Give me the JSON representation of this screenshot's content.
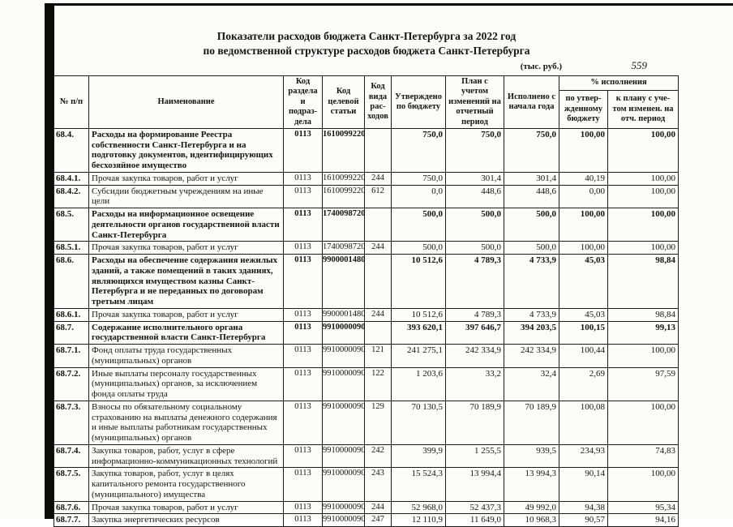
{
  "page": {
    "title_line1": "Показатели расходов бюджета Санкт-Петербурга за 2022 год",
    "title_line2": "по ведомственной структуре расходов бюджета Санкт-Петербурга",
    "units_note": "(тыс. руб.)",
    "page_number": "559"
  },
  "table": {
    "headers": {
      "num": "№ п/п",
      "name": "Наименование",
      "code_section": "Код раздела и подраз-дела",
      "code_target": "Код целевой статьи",
      "code_type": "Код вида рас-ходов",
      "approved": "Утверждено по бюджету",
      "plan": "План с учетом изменений на отчетный период",
      "executed": "Исполнено с начала года",
      "percent_group": "% исполнения",
      "percent_approved": "по утвер-жденному бюджету",
      "percent_plan": "к плану с уче-том изменен. на отч. период"
    },
    "rows": [
      {
        "num": "68.4.",
        "bold": true,
        "name": "Расходы на формирование Реестра собственности Санкт-Петербурга и на подготовку документов, идентифицирующих бесхозяйное имущество",
        "code_section": "0113",
        "code_target": "1610099220",
        "code_type": "",
        "approved": "750,0",
        "plan": "750,0",
        "executed": "750,0",
        "pct_budget": "100,00",
        "pct_plan": "100,00"
      },
      {
        "num": "68.4.1.",
        "bold": false,
        "name": "Прочая закупка товаров, работ и услуг",
        "code_section": "0113",
        "code_target": "1610099220",
        "code_type": "244",
        "approved": "750,0",
        "plan": "301,4",
        "executed": "301,4",
        "pct_budget": "40,19",
        "pct_plan": "100,00"
      },
      {
        "num": "68.4.2.",
        "bold": false,
        "name": "Субсидии бюджетным учреждениям на иные цели",
        "code_section": "0113",
        "code_target": "1610099220",
        "code_type": "612",
        "approved": "0,0",
        "plan": "448,6",
        "executed": "448,6",
        "pct_budget": "0,00",
        "pct_plan": "100,00"
      },
      {
        "num": "68.5.",
        "bold": true,
        "name": "Расходы на информационное освещение деятельности органов государственной власти Санкт-Петербурга",
        "code_section": "0113",
        "code_target": "1740098720",
        "code_type": "",
        "approved": "500,0",
        "plan": "500,0",
        "executed": "500,0",
        "pct_budget": "100,00",
        "pct_plan": "100,00"
      },
      {
        "num": "68.5.1.",
        "bold": false,
        "name": "Прочая закупка товаров, работ и услуг",
        "code_section": "0113",
        "code_target": "1740098720",
        "code_type": "244",
        "approved": "500,0",
        "plan": "500,0",
        "executed": "500,0",
        "pct_budget": "100,00",
        "pct_plan": "100,00"
      },
      {
        "num": "68.6.",
        "bold": true,
        "name": "Расходы на обеспечение содержания нежилых зданий, а также помещений в таких зданиях, являющихся имуществом казны Санкт-Петербурга и не переданных по договорам третьим лицам",
        "code_section": "0113",
        "code_target": "9900001480",
        "code_type": "",
        "approved": "10 512,6",
        "plan": "4 789,3",
        "executed": "4 733,9",
        "pct_budget": "45,03",
        "pct_plan": "98,84"
      },
      {
        "num": "68.6.1.",
        "bold": false,
        "name": "Прочая закупка товаров, работ и услуг",
        "code_section": "0113",
        "code_target": "9900001480",
        "code_type": "244",
        "approved": "10 512,6",
        "plan": "4 789,3",
        "executed": "4 733,9",
        "pct_budget": "45,03",
        "pct_plan": "98,84"
      },
      {
        "num": "68.7.",
        "bold": true,
        "name": "Содержание исполнительного органа государственной  власти Санкт-Петербурга",
        "code_section": "0113",
        "code_target": "9910000090",
        "code_type": "",
        "approved": "393 620,1",
        "plan": "397 646,7",
        "executed": "394 203,5",
        "pct_budget": "100,15",
        "pct_plan": "99,13"
      },
      {
        "num": "68.7.1.",
        "bold": false,
        "name": "Фонд оплаты труда государственных (муниципальных) органов",
        "code_section": "0113",
        "code_target": "9910000090",
        "code_type": "121",
        "approved": "241 275,1",
        "plan": "242 334,9",
        "executed": "242 334,9",
        "pct_budget": "100,44",
        "pct_plan": "100,00"
      },
      {
        "num": "68.7.2.",
        "bold": false,
        "name": "Иные выплаты персоналу государственных (муниципальных) органов, за исключением фонда оплаты труда",
        "code_section": "0113",
        "code_target": "9910000090",
        "code_type": "122",
        "approved": "1 203,6",
        "plan": "33,2",
        "executed": "32,4",
        "pct_budget": "2,69",
        "pct_plan": "97,59"
      },
      {
        "num": "68.7.3.",
        "bold": false,
        "name": "Взносы по обязательному социальному страхованию на выплаты денежного содержания и иные выплаты работникам государственных (муниципальных) органов",
        "code_section": "0113",
        "code_target": "9910000090",
        "code_type": "129",
        "approved": "70 130,5",
        "plan": "70 189,9",
        "executed": "70 189,9",
        "pct_budget": "100,08",
        "pct_plan": "100,00"
      },
      {
        "num": "68.7.4.",
        "bold": false,
        "name": "Закупка товаров, работ, услуг в сфере информационно-коммуникационных технологий",
        "code_section": "0113",
        "code_target": "9910000090",
        "code_type": "242",
        "approved": "399,9",
        "plan": "1 255,5",
        "executed": "939,5",
        "pct_budget": "234,93",
        "pct_plan": "74,83"
      },
      {
        "num": "68.7.5.",
        "bold": false,
        "name": "Закупка товаров, работ, услуг в целях капитального ремонта государственного (муниципального) имущества",
        "code_section": "0113",
        "code_target": "9910000090",
        "code_type": "243",
        "approved": "15 524,3",
        "plan": "13 994,4",
        "executed": "13 994,3",
        "pct_budget": "90,14",
        "pct_plan": "100,00"
      },
      {
        "num": "68.7.6.",
        "bold": false,
        "name": "Прочая закупка товаров, работ и услуг",
        "code_section": "0113",
        "code_target": "9910000090",
        "code_type": "244",
        "approved": "52 968,0",
        "plan": "52 437,3",
        "executed": "49 992,0",
        "pct_budget": "94,38",
        "pct_plan": "95,34"
      },
      {
        "num": "68.7.7.",
        "bold": false,
        "name": "Закупка энергетических ресурсов",
        "code_section": "0113",
        "code_target": "9910000090",
        "code_type": "247",
        "approved": "12 110,9",
        "plan": "11 649,0",
        "executed": "10 968,3",
        "pct_budget": "90,57",
        "pct_plan": "94,16"
      }
    ]
  }
}
